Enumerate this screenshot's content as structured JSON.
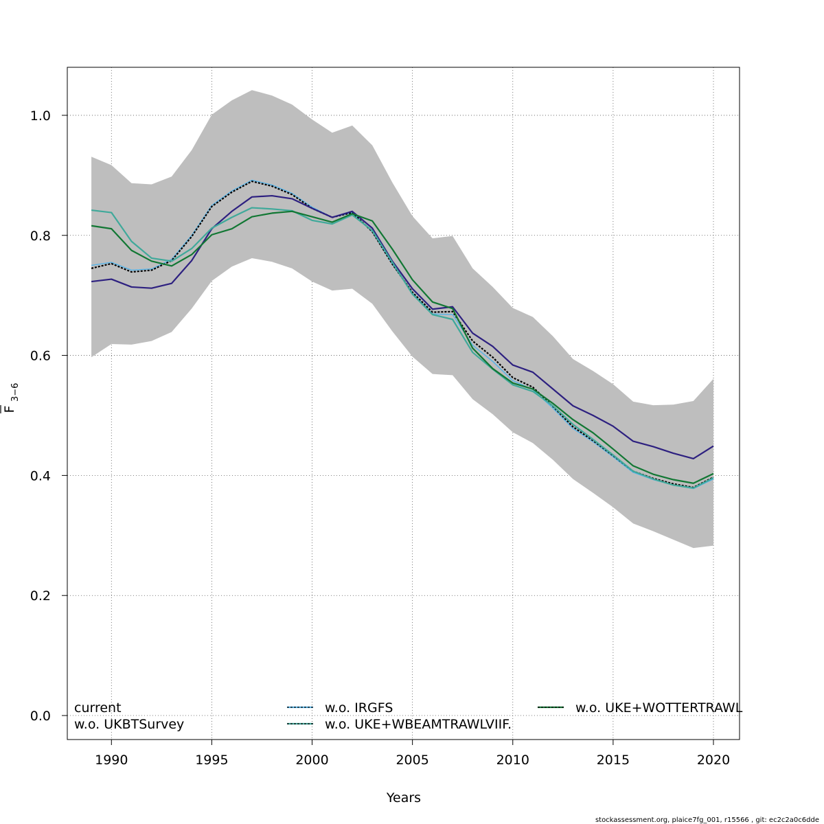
{
  "chart_data": {
    "type": "line",
    "title": "",
    "xlabel": "Years",
    "ylabel_main": "F",
    "ylabel_sub": "3−6",
    "xlim": [
      1987.8,
      2021.3
    ],
    "ylim": [
      -0.04,
      1.08
    ],
    "grid": true,
    "x_ticks": [
      1990,
      1995,
      2000,
      2005,
      2010,
      2015,
      2020
    ],
    "x_tick_labels": [
      "1990",
      "1995",
      "2000",
      "2005",
      "2010",
      "2015",
      "2020"
    ],
    "y_ticks": [
      0.0,
      0.2,
      0.4,
      0.6,
      0.8,
      1.0
    ],
    "y_tick_labels": [
      "0.0",
      "0.2",
      "0.4",
      "0.6",
      "0.8",
      "1.0"
    ],
    "x": [
      1989,
      1990,
      1991,
      1992,
      1993,
      1994,
      1995,
      1996,
      1997,
      1998,
      1999,
      2000,
      2001,
      2002,
      2003,
      2004,
      2005,
      2006,
      2007,
      2008,
      2009,
      2010,
      2011,
      2012,
      2013,
      2014,
      2015,
      2016,
      2017,
      2018,
      2019,
      2020
    ],
    "confidence_band": {
      "color": "#bebebe",
      "lower": [
        0.597,
        0.619,
        0.618,
        0.624,
        0.639,
        0.678,
        0.724,
        0.748,
        0.762,
        0.756,
        0.745,
        0.723,
        0.708,
        0.711,
        0.686,
        0.64,
        0.598,
        0.569,
        0.567,
        0.527,
        0.502,
        0.472,
        0.454,
        0.426,
        0.394,
        0.371,
        0.347,
        0.32,
        0.307,
        0.293,
        0.279,
        0.283
      ],
      "upper": [
        0.931,
        0.917,
        0.887,
        0.885,
        0.898,
        0.942,
        1.001,
        1.025,
        1.042,
        1.033,
        1.018,
        0.993,
        0.971,
        0.983,
        0.95,
        0.888,
        0.832,
        0.795,
        0.799,
        0.745,
        0.714,
        0.679,
        0.664,
        0.632,
        0.594,
        0.574,
        0.552,
        0.523,
        0.517,
        0.518,
        0.524,
        0.561
      ]
    },
    "series": [
      {
        "name": "current",
        "color": "#000000",
        "dash": "3,2",
        "values": [
          0.745,
          0.753,
          0.739,
          0.742,
          0.758,
          0.798,
          0.848,
          0.872,
          0.89,
          0.882,
          0.868,
          0.845,
          0.83,
          0.838,
          0.806,
          0.752,
          0.705,
          0.672,
          0.673,
          0.624,
          0.597,
          0.563,
          0.547,
          0.515,
          0.481,
          0.458,
          0.433,
          0.407,
          0.395,
          0.386,
          0.38,
          0.397
        ]
      },
      {
        "name": "w.o. IRGFS",
        "color": "#56b4e9",
        "dash": "",
        "values": [
          0.75,
          0.755,
          0.742,
          0.744,
          0.76,
          0.8,
          0.85,
          0.874,
          0.892,
          0.884,
          0.87,
          0.847,
          0.83,
          0.838,
          0.806,
          0.752,
          0.704,
          0.669,
          0.668,
          0.617,
          0.59,
          0.558,
          0.543,
          0.512,
          0.478,
          0.456,
          0.431,
          0.405,
          0.393,
          0.384,
          0.378,
          0.394
        ]
      },
      {
        "name": "w.o. UKBTSurvey",
        "color": "#2d2080",
        "dash": "",
        "values": [
          0.723,
          0.727,
          0.714,
          0.712,
          0.72,
          0.758,
          0.811,
          0.84,
          0.864,
          0.866,
          0.861,
          0.845,
          0.83,
          0.84,
          0.812,
          0.757,
          0.711,
          0.677,
          0.681,
          0.637,
          0.615,
          0.584,
          0.572,
          0.544,
          0.516,
          0.5,
          0.482,
          0.457,
          0.448,
          0.437,
          0.428,
          0.449
        ]
      },
      {
        "name": "w.o. UKE+WBEAMTRAWLVIIF.",
        "color": "#3fa99a",
        "dash": "",
        "values": [
          0.842,
          0.838,
          0.79,
          0.762,
          0.757,
          0.778,
          0.812,
          0.83,
          0.846,
          0.844,
          0.841,
          0.825,
          0.819,
          0.834,
          0.808,
          0.755,
          0.702,
          0.668,
          0.66,
          0.605,
          0.577,
          0.551,
          0.54,
          0.516,
          0.485,
          0.46,
          0.434,
          0.407,
          0.394,
          0.384,
          0.379,
          0.396
        ]
      },
      {
        "name": "w.o. UKE+WOTTERTRAWL",
        "color": "#117733",
        "dash": "",
        "values": [
          0.816,
          0.811,
          0.775,
          0.757,
          0.749,
          0.768,
          0.801,
          0.811,
          0.831,
          0.837,
          0.84,
          0.831,
          0.822,
          0.836,
          0.824,
          0.777,
          0.726,
          0.689,
          0.678,
          0.612,
          0.578,
          0.554,
          0.544,
          0.52,
          0.493,
          0.471,
          0.444,
          0.416,
          0.402,
          0.393,
          0.387,
          0.403
        ]
      }
    ],
    "legend": {
      "placement": "bottom",
      "entries": [
        {
          "label": "current",
          "series_index": 0,
          "show_line": false
        },
        {
          "label": "w.o. UKBTSurvey",
          "series_index": 2,
          "show_line": false
        },
        {
          "label": "w.o. IRGFS",
          "series_index": 1,
          "show_line": true
        },
        {
          "label": "w.o. UKE+WBEAMTRAWLVIIF.",
          "series_index": 3,
          "show_line": true
        },
        {
          "label": "w.o. UKE+WOTTERTRAWL",
          "series_index": 4,
          "show_line": true
        }
      ]
    }
  },
  "footer": "stockassessment.org, plaice7fg_001, r15566 , git: ec2c2a0c6dde"
}
